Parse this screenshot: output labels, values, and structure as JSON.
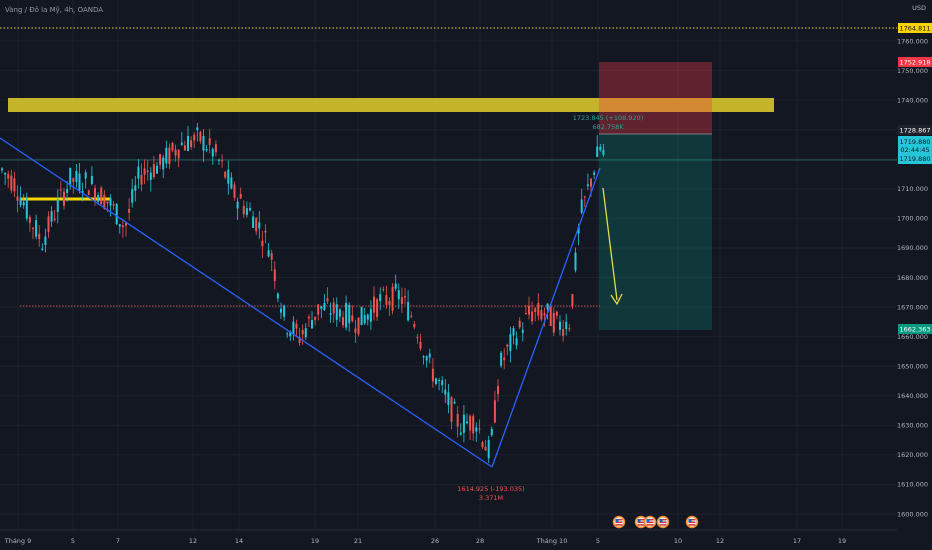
{
  "header": {
    "title": "Vàng / Đô la Mỹ, 4h, OANDA"
  },
  "currency": "USD",
  "y_ticks": [
    "1760.000",
    "1750.000",
    "1740.000",
    "1730.000",
    "1720.000",
    "1710.000",
    "1700.000",
    "1690.000",
    "1680.000",
    "1670.000",
    "1660.000",
    "1650.000",
    "1640.000",
    "1630.000",
    "1620.000",
    "1610.000",
    "1600.000"
  ],
  "x_ticks": [
    "Tháng 9",
    "5",
    "7",
    "12",
    "14",
    "19",
    "21",
    "26",
    "28",
    "Tháng 10",
    "5",
    "10",
    "12",
    "17",
    "19"
  ],
  "price_badges": {
    "top_dotted": "1764.811",
    "stop_loss": "1752.918",
    "entry": "1728.867",
    "last_price": "1719.880",
    "countdown": "02:44:45",
    "last_price_line": "1719.880",
    "take_profit": "1662.363"
  },
  "annotations": {
    "high_price": "1723.845 (+108.920)",
    "high_volume": "682.758K",
    "low_price": "1614.925 (-193.035)",
    "low_volume": "3.371M"
  },
  "colors": {
    "background": "#131722",
    "up_candle": "#26c6da",
    "down_candle": "#ef5350",
    "trendline": "#2962ff",
    "resistance_zone": "#d4c22a",
    "stop_zone": "#5b1f26",
    "target_zone": "#12393a",
    "arrow": "#e6d94a",
    "take_profit_badge": "#089981",
    "stop_badge": "#f23645"
  },
  "icons": [
    "flag-us-icon",
    "flag-us-icon",
    "flag-us-icon",
    "flag-us-icon",
    "flag-us-icon"
  ]
}
